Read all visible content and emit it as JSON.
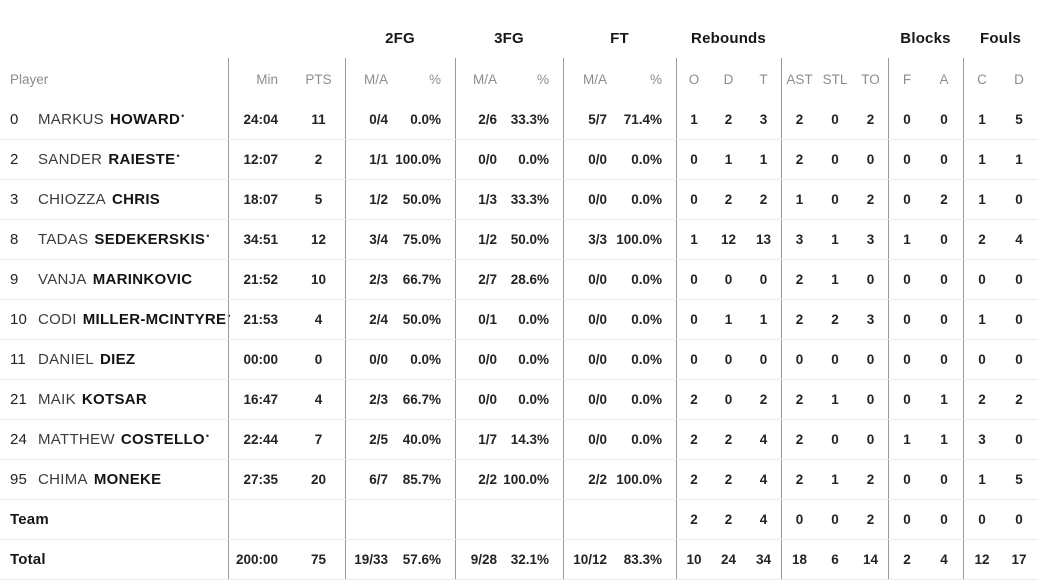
{
  "colors": {
    "background": "#ffffff",
    "header_text": "#17171b",
    "muted_header_text": "#8b8d91",
    "value_text": "#222227",
    "vertical_divider": "#98989c",
    "row_separator": "#ebebee"
  },
  "starter_mark": "•",
  "group_headers": {
    "fg2": "2FG",
    "fg3": "3FG",
    "ft": "FT",
    "rebounds": "Rebounds",
    "blocks": "Blocks",
    "fouls": "Fouls"
  },
  "column_headers": {
    "player": "Player",
    "min": "Min",
    "pts": "PTS",
    "ma": "M/A",
    "pct": "%",
    "o": "O",
    "d": "D",
    "t": "T",
    "ast": "AST",
    "stl": "STL",
    "to": "TO",
    "f": "F",
    "a": "A",
    "c": "C",
    "d2": "D"
  },
  "rows": [
    {
      "number": "0",
      "first": "MARKUS",
      "last": "HOWARD",
      "starter": true,
      "min": "24:04",
      "pts": "11",
      "fg2ma": "0/4",
      "fg2pct": "0.0%",
      "fg3ma": "2/6",
      "fg3pct": "33.3%",
      "ftma": "5/7",
      "ftpct": "71.4%",
      "o": "1",
      "d": "2",
      "t": "3",
      "ast": "2",
      "stl": "0",
      "to": "2",
      "bf": "0",
      "ba": "0",
      "fc": "1",
      "fd": "5"
    },
    {
      "number": "2",
      "first": "SANDER",
      "last": "RAIESTE",
      "starter": true,
      "min": "12:07",
      "pts": "2",
      "fg2ma": "1/1",
      "fg2pct": "100.0%",
      "fg3ma": "0/0",
      "fg3pct": "0.0%",
      "ftma": "0/0",
      "ftpct": "0.0%",
      "o": "0",
      "d": "1",
      "t": "1",
      "ast": "2",
      "stl": "0",
      "to": "0",
      "bf": "0",
      "ba": "0",
      "fc": "1",
      "fd": "1"
    },
    {
      "number": "3",
      "first": "CHIOZZA",
      "last": "CHRIS",
      "starter": false,
      "min": "18:07",
      "pts": "5",
      "fg2ma": "1/2",
      "fg2pct": "50.0%",
      "fg3ma": "1/3",
      "fg3pct": "33.3%",
      "ftma": "0/0",
      "ftpct": "0.0%",
      "o": "0",
      "d": "2",
      "t": "2",
      "ast": "1",
      "stl": "0",
      "to": "2",
      "bf": "0",
      "ba": "2",
      "fc": "1",
      "fd": "0"
    },
    {
      "number": "8",
      "first": "TADAS",
      "last": "SEDEKERSKIS",
      "starter": true,
      "min": "34:51",
      "pts": "12",
      "fg2ma": "3/4",
      "fg2pct": "75.0%",
      "fg3ma": "1/2",
      "fg3pct": "50.0%",
      "ftma": "3/3",
      "ftpct": "100.0%",
      "o": "1",
      "d": "12",
      "t": "13",
      "ast": "3",
      "stl": "1",
      "to": "3",
      "bf": "1",
      "ba": "0",
      "fc": "2",
      "fd": "4"
    },
    {
      "number": "9",
      "first": "VANJA",
      "last": "MARINKOVIC",
      "starter": false,
      "min": "21:52",
      "pts": "10",
      "fg2ma": "2/3",
      "fg2pct": "66.7%",
      "fg3ma": "2/7",
      "fg3pct": "28.6%",
      "ftma": "0/0",
      "ftpct": "0.0%",
      "o": "0",
      "d": "0",
      "t": "0",
      "ast": "2",
      "stl": "1",
      "to": "0",
      "bf": "0",
      "ba": "0",
      "fc": "0",
      "fd": "0"
    },
    {
      "number": "10",
      "first": "CODI",
      "last": "MILLER-MCINTYRE",
      "starter": true,
      "min": "21:53",
      "pts": "4",
      "fg2ma": "2/4",
      "fg2pct": "50.0%",
      "fg3ma": "0/1",
      "fg3pct": "0.0%",
      "ftma": "0/0",
      "ftpct": "0.0%",
      "o": "0",
      "d": "1",
      "t": "1",
      "ast": "2",
      "stl": "2",
      "to": "3",
      "bf": "0",
      "ba": "0",
      "fc": "1",
      "fd": "0"
    },
    {
      "number": "11",
      "first": "DANIEL",
      "last": "DIEZ",
      "starter": false,
      "min": "00:00",
      "pts": "0",
      "fg2ma": "0/0",
      "fg2pct": "0.0%",
      "fg3ma": "0/0",
      "fg3pct": "0.0%",
      "ftma": "0/0",
      "ftpct": "0.0%",
      "o": "0",
      "d": "0",
      "t": "0",
      "ast": "0",
      "stl": "0",
      "to": "0",
      "bf": "0",
      "ba": "0",
      "fc": "0",
      "fd": "0"
    },
    {
      "number": "21",
      "first": "MAIK",
      "last": "KOTSAR",
      "starter": false,
      "min": "16:47",
      "pts": "4",
      "fg2ma": "2/3",
      "fg2pct": "66.7%",
      "fg3ma": "0/0",
      "fg3pct": "0.0%",
      "ftma": "0/0",
      "ftpct": "0.0%",
      "o": "2",
      "d": "0",
      "t": "2",
      "ast": "2",
      "stl": "1",
      "to": "0",
      "bf": "0",
      "ba": "1",
      "fc": "2",
      "fd": "2"
    },
    {
      "number": "24",
      "first": "MATTHEW",
      "last": "COSTELLO",
      "starter": true,
      "min": "22:44",
      "pts": "7",
      "fg2ma": "2/5",
      "fg2pct": "40.0%",
      "fg3ma": "1/7",
      "fg3pct": "14.3%",
      "ftma": "0/0",
      "ftpct": "0.0%",
      "o": "2",
      "d": "2",
      "t": "4",
      "ast": "2",
      "stl": "0",
      "to": "0",
      "bf": "1",
      "ba": "1",
      "fc": "3",
      "fd": "0"
    },
    {
      "number": "95",
      "first": "CHIMA",
      "last": "MONEKE",
      "starter": false,
      "min": "27:35",
      "pts": "20",
      "fg2ma": "6/7",
      "fg2pct": "85.7%",
      "fg3ma": "2/2",
      "fg3pct": "100.0%",
      "ftma": "2/2",
      "ftpct": "100.0%",
      "o": "2",
      "d": "2",
      "t": "4",
      "ast": "2",
      "stl": "1",
      "to": "2",
      "bf": "0",
      "ba": "0",
      "fc": "1",
      "fd": "5"
    },
    {
      "label": "Team",
      "min": "",
      "pts": "",
      "fg2ma": "",
      "fg2pct": "",
      "fg3ma": "",
      "fg3pct": "",
      "ftma": "",
      "ftpct": "",
      "o": "2",
      "d": "2",
      "t": "4",
      "ast": "0",
      "stl": "0",
      "to": "2",
      "bf": "0",
      "ba": "0",
      "fc": "0",
      "fd": "0"
    },
    {
      "label": "Total",
      "min": "200:00",
      "pts": "75",
      "fg2ma": "19/33",
      "fg2pct": "57.6%",
      "fg3ma": "9/28",
      "fg3pct": "32.1%",
      "ftma": "10/12",
      "ftpct": "83.3%",
      "o": "10",
      "d": "24",
      "t": "34",
      "ast": "18",
      "stl": "6",
      "to": "14",
      "bf": "2",
      "ba": "4",
      "fc": "12",
      "fd": "17"
    }
  ]
}
